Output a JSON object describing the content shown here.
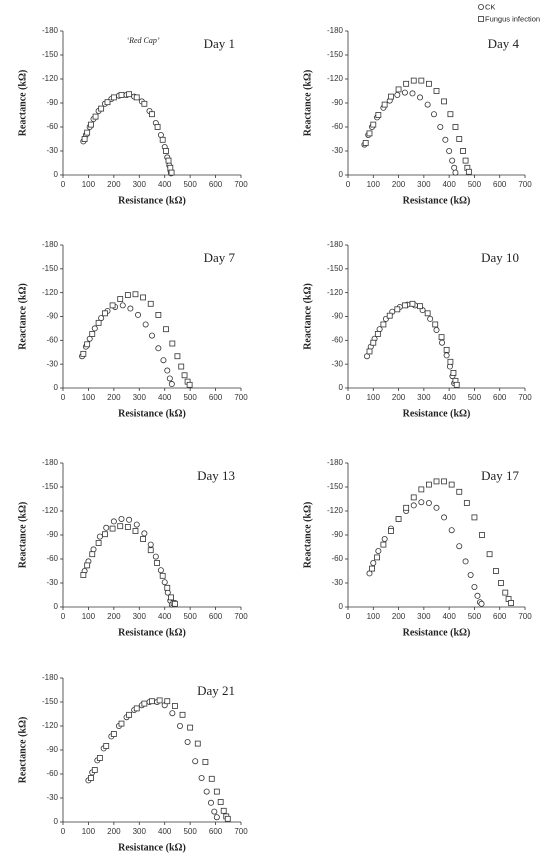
{
  "chart_data": [
    {
      "type": "scatter",
      "title": "Day 1",
      "annotation": "‘Red Cap’",
      "xlabel": "Resistance (kΩ)",
      "ylabel": "Reactance (kΩ)",
      "xlim": [
        0,
        700
      ],
      "xticks": [
        0,
        100,
        200,
        300,
        400,
        500,
        600,
        700
      ],
      "ylim": [
        0,
        -180
      ],
      "yticks": [
        -180,
        -150,
        -120,
        -90,
        -60,
        -30,
        0
      ],
      "series": [
        {
          "name": "CK",
          "marker": "circle",
          "color": "#333333",
          "x": [
            80,
            90,
            105,
            120,
            140,
            165,
            190,
            220,
            250,
            280,
            310,
            340,
            365,
            385,
            400,
            410,
            418,
            423,
            425
          ],
          "values": [
            -42,
            -50,
            -60,
            -70,
            -80,
            -89,
            -95,
            -99,
            -100,
            -98,
            -92,
            -80,
            -65,
            -50,
            -35,
            -22,
            -12,
            -5,
            -2
          ]
        },
        {
          "name": "Fungus infection",
          "marker": "square",
          "color": "#333333",
          "x": [
            85,
            95,
            110,
            128,
            150,
            175,
            200,
            230,
            260,
            290,
            320,
            350,
            372,
            392,
            405,
            415,
            422,
            427
          ],
          "values": [
            -45,
            -53,
            -63,
            -73,
            -83,
            -91,
            -97,
            -100,
            -101,
            -97,
            -89,
            -76,
            -60,
            -44,
            -30,
            -18,
            -9,
            -3
          ]
        }
      ]
    },
    {
      "type": "scatter",
      "title": "Day 4",
      "xlabel": "Resistance (kΩ)",
      "ylabel": "Reactance (kΩ)",
      "xlim": [
        0,
        700
      ],
      "xticks": [
        0,
        100,
        200,
        300,
        400,
        500,
        600,
        700
      ],
      "ylim": [
        0,
        -180
      ],
      "yticks": [
        -180,
        -150,
        -120,
        -90,
        -60,
        -30,
        0
      ],
      "series": [
        {
          "marker": "circle",
          "color": "#333333",
          "x": [
            65,
            80,
            95,
            115,
            140,
            165,
            195,
            225,
            255,
            285,
            315,
            340,
            365,
            385,
            400,
            412,
            420,
            425
          ],
          "values": [
            -38,
            -50,
            -60,
            -72,
            -84,
            -93,
            -100,
            -103,
            -102,
            -97,
            -88,
            -76,
            -60,
            -44,
            -30,
            -18,
            -9,
            -3
          ]
        },
        {
          "marker": "square",
          "color": "#333333",
          "x": [
            70,
            85,
            100,
            120,
            145,
            170,
            200,
            230,
            260,
            290,
            320,
            350,
            380,
            405,
            425,
            440,
            455,
            465,
            472,
            478
          ],
          "values": [
            -40,
            -52,
            -63,
            -75,
            -88,
            -98,
            -107,
            -114,
            -118,
            -118,
            -114,
            -105,
            -92,
            -76,
            -60,
            -45,
            -30,
            -18,
            -9,
            -4
          ]
        }
      ]
    },
    {
      "type": "scatter",
      "title": "Day 7",
      "xlabel": "Resistance (kΩ)",
      "ylabel": "Reactance (kΩ)",
      "xlim": [
        0,
        700
      ],
      "xticks": [
        0,
        100,
        200,
        300,
        400,
        500,
        600,
        700
      ],
      "ylim": [
        0,
        -180
      ],
      "yticks": [
        -180,
        -150,
        -120,
        -90,
        -60,
        -30,
        0
      ],
      "series": [
        {
          "marker": "circle",
          "color": "#333333",
          "x": [
            75,
            90,
            105,
            125,
            150,
            175,
            205,
            235,
            265,
            295,
            325,
            350,
            375,
            395,
            410,
            420,
            428
          ],
          "values": [
            -40,
            -52,
            -62,
            -75,
            -88,
            -97,
            -102,
            -104,
            -100,
            -92,
            -80,
            -66,
            -50,
            -35,
            -22,
            -12,
            -5
          ]
        },
        {
          "marker": "square",
          "color": "#333333",
          "x": [
            80,
            95,
            115,
            140,
            165,
            195,
            225,
            255,
            285,
            315,
            345,
            375,
            405,
            430,
            450,
            465,
            478,
            490,
            498
          ],
          "values": [
            -43,
            -55,
            -68,
            -82,
            -94,
            -104,
            -112,
            -117,
            -118,
            -114,
            -106,
            -92,
            -74,
            -56,
            -40,
            -27,
            -16,
            -8,
            -4
          ]
        }
      ]
    },
    {
      "type": "scatter",
      "title": "Day 10",
      "xlabel": "Resistance (kΩ)",
      "ylabel": "Reactance (kΩ)",
      "xlim": [
        0,
        700
      ],
      "xticks": [
        0,
        100,
        200,
        300,
        400,
        500,
        600,
        700
      ],
      "ylim": [
        0,
        -180
      ],
      "yticks": [
        -180,
        -150,
        -120,
        -90,
        -60,
        -30,
        0
      ],
      "series": [
        {
          "marker": "circle",
          "color": "#333333",
          "x": [
            75,
            90,
            105,
            125,
            150,
            175,
            205,
            235,
            265,
            295,
            325,
            350,
            372,
            390,
            403,
            413,
            420
          ],
          "values": [
            -40,
            -52,
            -62,
            -74,
            -87,
            -96,
            -102,
            -105,
            -104,
            -98,
            -87,
            -73,
            -57,
            -41,
            -27,
            -15,
            -6
          ]
        },
        {
          "marker": "square",
          "color": "#333333",
          "x": [
            85,
            100,
            118,
            140,
            165,
            195,
            225,
            255,
            285,
            315,
            345,
            370,
            390,
            405,
            417,
            425,
            430
          ],
          "values": [
            -46,
            -57,
            -68,
            -80,
            -91,
            -99,
            -104,
            -106,
            -103,
            -94,
            -80,
            -64,
            -48,
            -33,
            -19,
            -9,
            -4
          ]
        }
      ]
    },
    {
      "type": "scatter",
      "title": "Day 13",
      "xlabel": "Resistance (kΩ)",
      "ylabel": "Reactance (kΩ)",
      "xlim": [
        0,
        700
      ],
      "xticks": [
        0,
        100,
        200,
        300,
        400,
        500,
        600,
        700
      ],
      "ylim": [
        0,
        -180
      ],
      "yticks": [
        -180,
        -150,
        -120,
        -90,
        -60,
        -30,
        0
      ],
      "series": [
        {
          "marker": "circle",
          "color": "#333333",
          "x": [
            85,
            100,
            120,
            145,
            170,
            200,
            230,
            260,
            290,
            320,
            345,
            365,
            385,
            400,
            412,
            422,
            428
          ],
          "values": [
            -45,
            -57,
            -72,
            -88,
            -99,
            -107,
            -110,
            -109,
            -103,
            -92,
            -78,
            -63,
            -46,
            -31,
            -18,
            -8,
            -3
          ]
        },
        {
          "marker": "square",
          "color": "#333333",
          "x": [
            80,
            95,
            115,
            140,
            165,
            195,
            225,
            255,
            285,
            315,
            345,
            370,
            392,
            410,
            425,
            435,
            440
          ],
          "values": [
            -40,
            -52,
            -66,
            -80,
            -91,
            -98,
            -101,
            -100,
            -95,
            -85,
            -71,
            -55,
            -39,
            -24,
            -12,
            -5,
            -4
          ]
        }
      ]
    },
    {
      "type": "scatter",
      "title": "Day 17",
      "xlabel": "Resistance (kΩ)",
      "ylabel": "Reactance (kΩ)",
      "xlim": [
        0,
        700
      ],
      "xticks": [
        0,
        100,
        200,
        300,
        400,
        500,
        600,
        700
      ],
      "ylim": [
        0,
        -180
      ],
      "yticks": [
        -180,
        -150,
        -120,
        -90,
        -60,
        -30,
        0
      ],
      "series": [
        {
          "marker": "circle",
          "color": "#333333",
          "x": [
            85,
            100,
            120,
            145,
            170,
            200,
            230,
            260,
            290,
            320,
            350,
            380,
            410,
            440,
            465,
            485,
            500,
            512,
            522,
            528
          ],
          "values": [
            -42,
            -55,
            -70,
            -85,
            -98,
            -110,
            -120,
            -127,
            -131,
            -130,
            -124,
            -112,
            -96,
            -76,
            -57,
            -40,
            -25,
            -14,
            -6,
            -4
          ]
        },
        {
          "marker": "square",
          "color": "#333333",
          "x": [
            95,
            115,
            140,
            170,
            200,
            230,
            260,
            290,
            320,
            350,
            380,
            410,
            440,
            470,
            500,
            530,
            560,
            585,
            605,
            622,
            635,
            645
          ],
          "values": [
            -48,
            -62,
            -78,
            -95,
            -110,
            -124,
            -137,
            -147,
            -153,
            -157,
            -157,
            -153,
            -144,
            -130,
            -112,
            -90,
            -66,
            -45,
            -30,
            -18,
            -10,
            -5
          ]
        }
      ]
    },
    {
      "type": "scatter",
      "title": "Day 21",
      "xlabel": "Resistance (kΩ)",
      "ylabel": "Reactance (kΩ)",
      "xlim": [
        0,
        700
      ],
      "xticks": [
        0,
        100,
        200,
        300,
        400,
        500,
        600,
        700
      ],
      "ylim": [
        0,
        -180
      ],
      "yticks": [
        -180,
        -150,
        -120,
        -90,
        -60,
        -30,
        0
      ],
      "series": [
        {
          "marker": "circle",
          "color": "#333333",
          "x": [
            100,
            115,
            135,
            160,
            190,
            220,
            250,
            280,
            310,
            340,
            370,
            400,
            430,
            460,
            490,
            520,
            545,
            565,
            582,
            595,
            605
          ],
          "values": [
            -52,
            -62,
            -77,
            -92,
            -107,
            -120,
            -131,
            -140,
            -146,
            -150,
            -150,
            -146,
            -136,
            -120,
            -100,
            -76,
            -55,
            -38,
            -24,
            -13,
            -6
          ]
        },
        {
          "marker": "square",
          "color": "#333333",
          "x": [
            110,
            125,
            145,
            170,
            200,
            230,
            260,
            290,
            320,
            350,
            380,
            410,
            440,
            470,
            500,
            530,
            560,
            585,
            605,
            620,
            632,
            642,
            648
          ],
          "values": [
            -55,
            -65,
            -80,
            -95,
            -110,
            -123,
            -134,
            -142,
            -148,
            -151,
            -152,
            -151,
            -145,
            -134,
            -118,
            -98,
            -75,
            -54,
            -38,
            -25,
            -14,
            -7,
            -4
          ]
        }
      ]
    }
  ]
}
